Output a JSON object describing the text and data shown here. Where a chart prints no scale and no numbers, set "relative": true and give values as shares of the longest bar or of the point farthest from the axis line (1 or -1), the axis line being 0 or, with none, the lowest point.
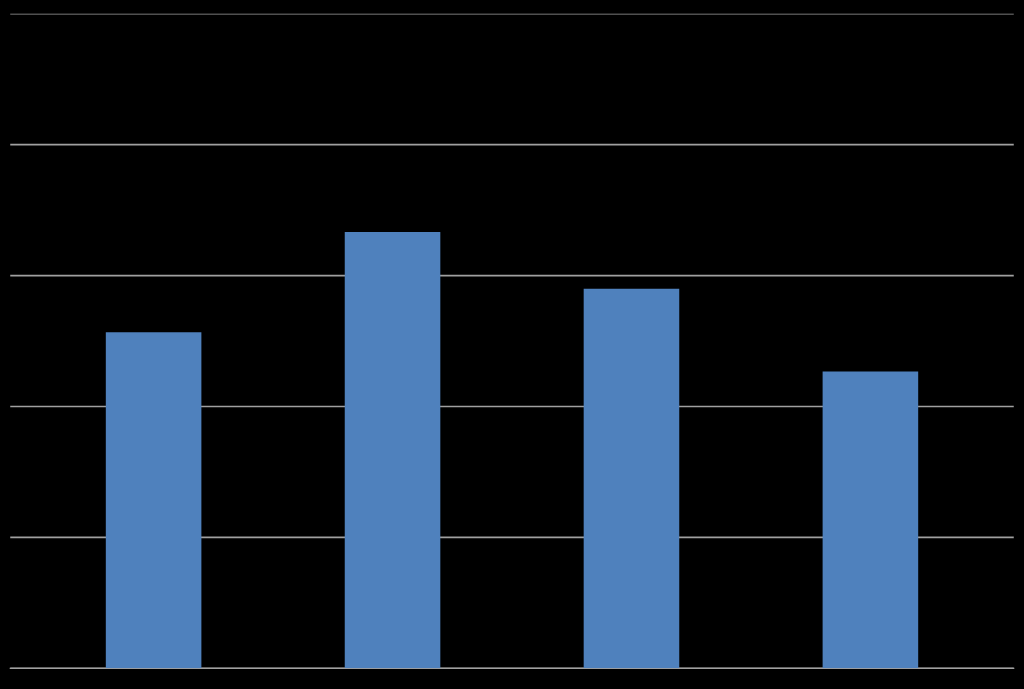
{
  "chart_data": {
    "type": "bar",
    "relative": true,
    "categories": [
      null,
      null,
      null,
      null
    ],
    "values": [
      0.77,
      1,
      0.87,
      0.68
    ],
    "color": "#4f81bd",
    "grid": "y"
  }
}
